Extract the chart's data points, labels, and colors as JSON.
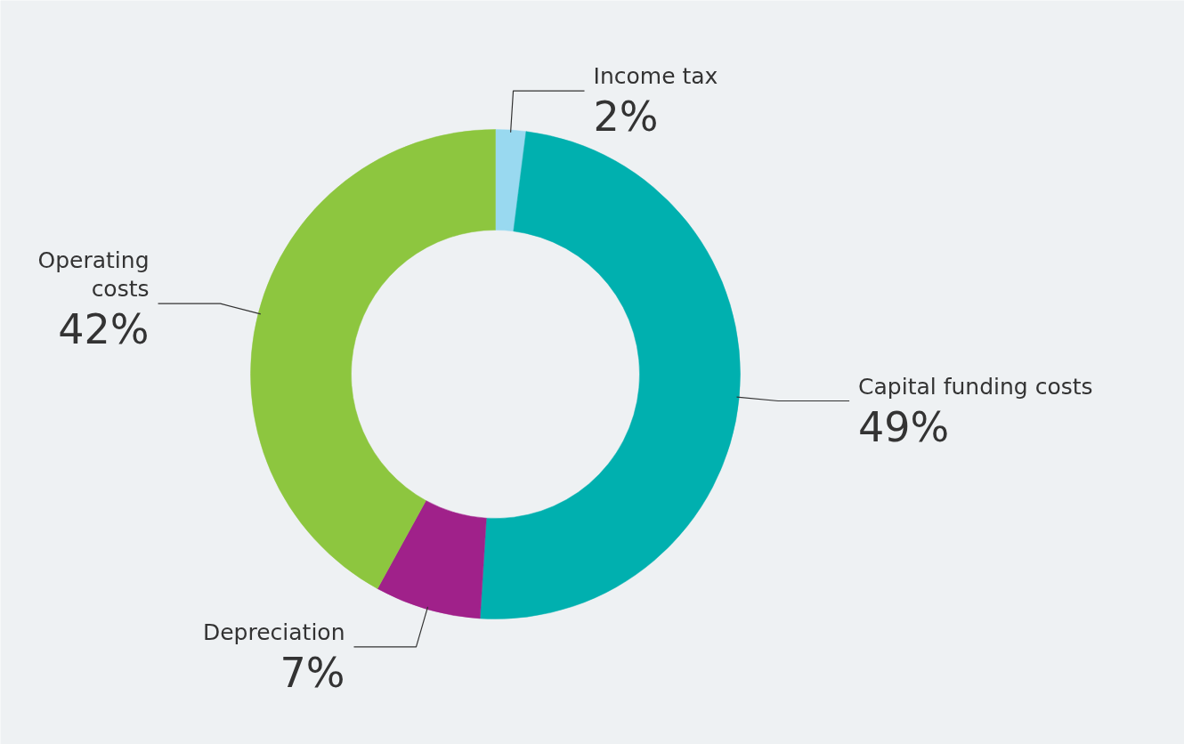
{
  "chart_data": {
    "type": "donut",
    "categories": [
      "Income tax",
      "Capital funding costs",
      "Depreciation",
      "Operating costs"
    ],
    "values": [
      2,
      49,
      7,
      42
    ],
    "colors": [
      "#99d9f0",
      "#00b0af",
      "#a0218a",
      "#8dc63f"
    ],
    "value_labels": [
      "2%",
      "49%",
      "7%",
      "42%"
    ]
  }
}
